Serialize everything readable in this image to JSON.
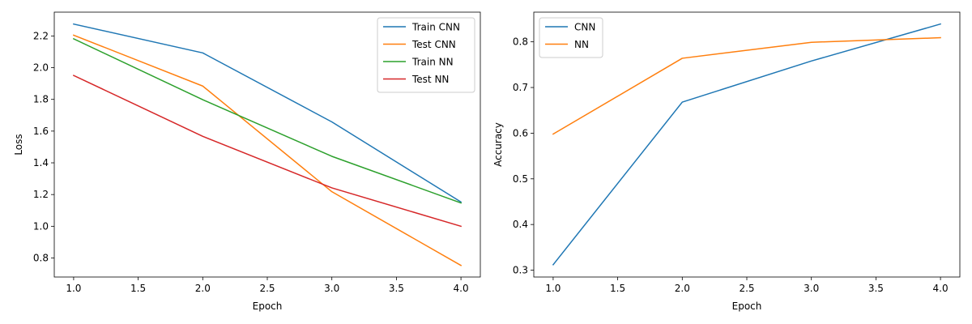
{
  "chart_data": [
    {
      "type": "line",
      "title": "",
      "xlabel": "Epoch",
      "ylabel": "Loss",
      "xlim": [
        0.85,
        4.15
      ],
      "ylim": [
        0.68,
        2.35
      ],
      "xticks": [
        1.0,
        1.5,
        2.0,
        2.5,
        3.0,
        3.5,
        4.0
      ],
      "xtick_labels": [
        "1.0",
        "1.5",
        "2.0",
        "2.5",
        "3.0",
        "3.5",
        "4.0"
      ],
      "yticks": [
        0.8,
        1.0,
        1.2,
        1.4,
        1.6,
        1.8,
        2.0,
        2.2
      ],
      "ytick_labels": [
        "0.8",
        "1.0",
        "1.2",
        "1.4",
        "1.6",
        "1.8",
        "2.0",
        "2.2"
      ],
      "grid": false,
      "legend_position": "top-right",
      "x": [
        1,
        2,
        3,
        4
      ],
      "series": [
        {
          "name": "Train CNN",
          "color": "#1f77b4",
          "values": [
            2.275,
            2.093,
            1.658,
            1.153
          ]
        },
        {
          "name": "Test CNN",
          "color": "#ff7f0e",
          "values": [
            2.205,
            1.884,
            1.218,
            0.753
          ]
        },
        {
          "name": "Train NN",
          "color": "#2ca02c",
          "values": [
            2.182,
            1.798,
            1.441,
            1.147
          ]
        },
        {
          "name": "Test NN",
          "color": "#d62728",
          "values": [
            1.951,
            1.567,
            1.242,
            1.0
          ]
        }
      ]
    },
    {
      "type": "line",
      "title": "",
      "xlabel": "Epoch",
      "ylabel": "Accuracy",
      "xlim": [
        0.85,
        4.15
      ],
      "ylim": [
        0.285,
        0.865
      ],
      "xticks": [
        1.0,
        1.5,
        2.0,
        2.5,
        3.0,
        3.5,
        4.0
      ],
      "xtick_labels": [
        "1.0",
        "1.5",
        "2.0",
        "2.5",
        "3.0",
        "3.5",
        "4.0"
      ],
      "yticks": [
        0.3,
        0.4,
        0.5,
        0.6,
        0.7,
        0.8
      ],
      "ytick_labels": [
        "0.3",
        "0.4",
        "0.5",
        "0.6",
        "0.7",
        "0.8"
      ],
      "grid": false,
      "legend_position": "top-left",
      "x": [
        1,
        2,
        3,
        4
      ],
      "series": [
        {
          "name": "CNN",
          "color": "#1f77b4",
          "values": [
            0.312,
            0.668,
            0.758,
            0.839
          ]
        },
        {
          "name": "NN",
          "color": "#ff7f0e",
          "values": [
            0.598,
            0.764,
            0.799,
            0.809
          ]
        }
      ]
    }
  ]
}
